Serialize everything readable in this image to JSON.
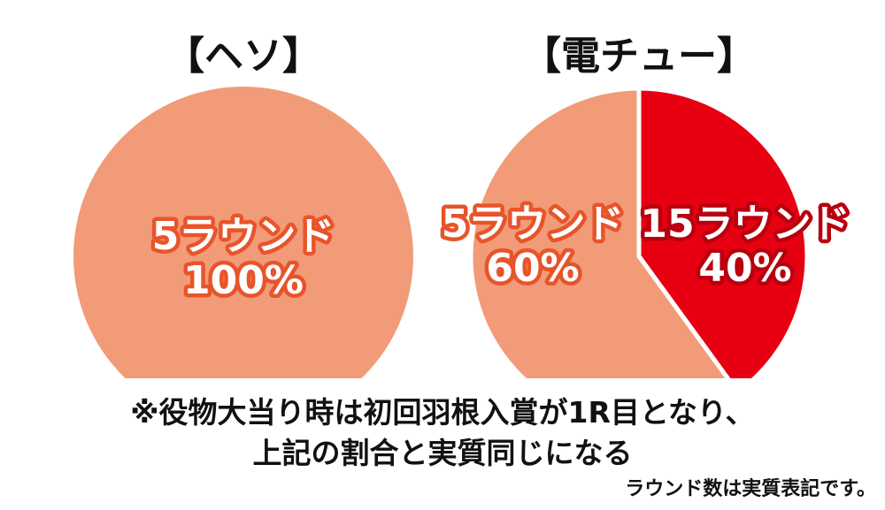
{
  "colors": {
    "five_round": "#f29b78",
    "fifteen_round": "#e60012",
    "label_outline": "#e8542a",
    "background": "#ffffff"
  },
  "chart_data": [
    {
      "type": "pie",
      "title": "【ヘソ】",
      "slices": [
        {
          "label": "5ラウンド",
          "value": 100,
          "value_label": "100%",
          "color": "#f29b78"
        }
      ]
    },
    {
      "type": "pie",
      "title": "【電チュー】",
      "slices": [
        {
          "label": "15ラウンド",
          "value": 40,
          "value_label": "40%",
          "color": "#e60012"
        },
        {
          "label": "5ラウンド",
          "value": 60,
          "value_label": "60%",
          "color": "#f29b78"
        }
      ]
    }
  ],
  "notes": {
    "line1": "※役物大当り時は初回羽根入賞が1R目となり、",
    "line2": "上記の割合と実質同じになる",
    "footnote": "ラウンド数は実質表記です。"
  }
}
